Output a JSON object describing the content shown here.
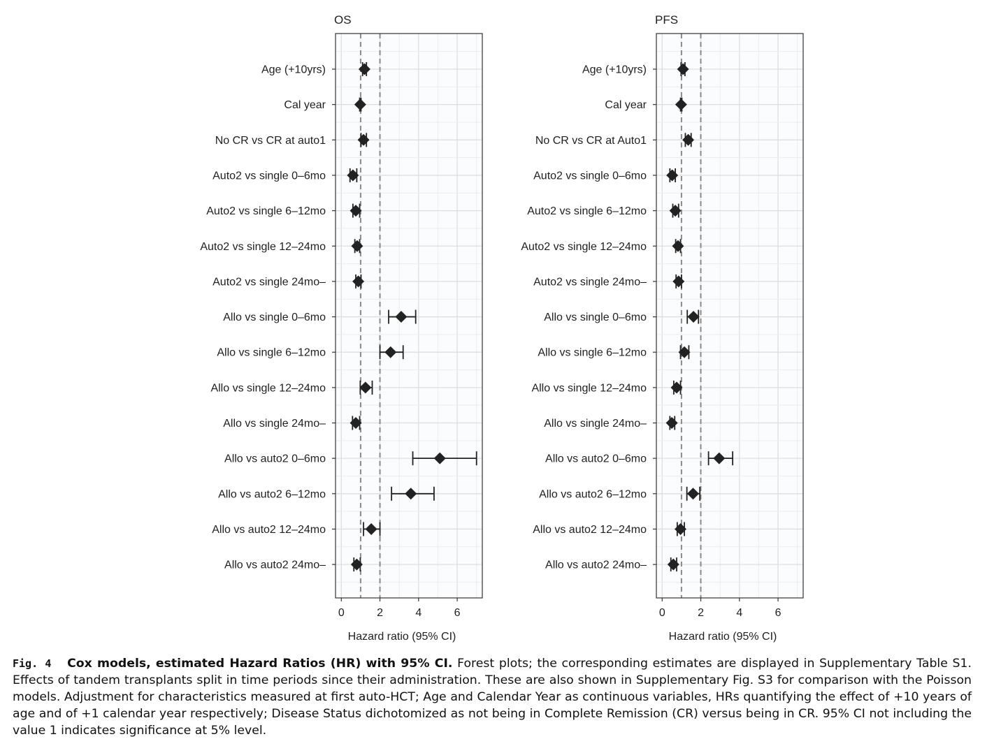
{
  "chart_data": [
    {
      "type": "forest",
      "title": "OS",
      "xlabel": "Hazard ratio (95% CI)",
      "xlim": [
        -0.3,
        7.3
      ],
      "xticks": [
        0,
        2,
        4,
        6
      ],
      "reference_lines": [
        1,
        2
      ],
      "grid": true,
      "rows": [
        {
          "label": "Age (+10yrs)",
          "hr": 1.2,
          "lower": 1.1,
          "upper": 1.3
        },
        {
          "label": "Cal year",
          "hr": 0.98,
          "lower": 0.95,
          "upper": 1.02
        },
        {
          "label": "No CR vs CR at auto1",
          "hr": 1.15,
          "lower": 1.02,
          "upper": 1.3
        },
        {
          "label": "Auto2 vs single 0–6mo",
          "hr": 0.6,
          "lower": 0.45,
          "upper": 0.8
        },
        {
          "label": "Auto2 vs single 6–12mo",
          "hr": 0.75,
          "lower": 0.6,
          "upper": 0.95
        },
        {
          "label": "Auto2 vs single 12–24mo",
          "hr": 0.82,
          "lower": 0.7,
          "upper": 0.95
        },
        {
          "label": "Auto2 vs single 24mo–",
          "hr": 0.88,
          "lower": 0.75,
          "upper": 1.02
        },
        {
          "label": "Allo vs single 0–6mo",
          "hr": 3.1,
          "lower": 2.45,
          "upper": 3.85
        },
        {
          "label": "Allo vs single 6–12mo",
          "hr": 2.55,
          "lower": 2.0,
          "upper": 3.2
        },
        {
          "label": "Allo vs single 12–24mo",
          "hr": 1.25,
          "lower": 0.98,
          "upper": 1.6
        },
        {
          "label": "Allo vs single 24mo–",
          "hr": 0.75,
          "lower": 0.58,
          "upper": 0.95
        },
        {
          "label": "Allo vs auto2 0–6mo",
          "hr": 5.1,
          "lower": 3.7,
          "upper": 7.0
        },
        {
          "label": "Allo vs auto2 6–12mo",
          "hr": 3.6,
          "lower": 2.6,
          "upper": 4.8
        },
        {
          "label": "Allo vs auto2 12–24mo",
          "hr": 1.55,
          "lower": 1.15,
          "upper": 2.0
        },
        {
          "label": "Allo vs auto2 24mo–",
          "hr": 0.8,
          "lower": 0.65,
          "upper": 0.98
        }
      ]
    },
    {
      "type": "forest",
      "title": "PFS",
      "xlabel": "Hazard ratio (95% CI)",
      "xlim": [
        -0.3,
        7.3
      ],
      "xticks": [
        0,
        2,
        4,
        6
      ],
      "reference_lines": [
        1,
        2
      ],
      "grid": true,
      "rows": [
        {
          "label": "Age (+10yrs)",
          "hr": 1.08,
          "lower": 0.98,
          "upper": 1.18
        },
        {
          "label": "Cal year",
          "hr": 0.98,
          "lower": 0.95,
          "upper": 1.02
        },
        {
          "label": "No CR vs CR at Auto1",
          "hr": 1.35,
          "lower": 1.2,
          "upper": 1.5
        },
        {
          "label": "Auto2 vs single 0–6mo",
          "hr": 0.52,
          "lower": 0.4,
          "upper": 0.68
        },
        {
          "label": "Auto2 vs single 6–12mo",
          "hr": 0.68,
          "lower": 0.55,
          "upper": 0.85
        },
        {
          "label": "Auto2 vs single 12–24mo",
          "hr": 0.82,
          "lower": 0.7,
          "upper": 0.95
        },
        {
          "label": "Auto2 vs single 24mo–",
          "hr": 0.85,
          "lower": 0.72,
          "upper": 1.0
        },
        {
          "label": "Allo vs single 0–6mo",
          "hr": 1.62,
          "lower": 1.3,
          "upper": 1.88
        },
        {
          "label": "Allo vs single 6–12mo",
          "hr": 1.15,
          "lower": 0.95,
          "upper": 1.38
        },
        {
          "label": "Allo vs single 12–24mo",
          "hr": 0.75,
          "lower": 0.6,
          "upper": 0.95
        },
        {
          "label": "Allo vs single 24mo–",
          "hr": 0.5,
          "lower": 0.4,
          "upper": 0.65
        },
        {
          "label": "Allo vs auto2 0–6mo",
          "hr": 2.95,
          "lower": 2.4,
          "upper": 3.65
        },
        {
          "label": "Allo vs auto2 6–12mo",
          "hr": 1.6,
          "lower": 1.28,
          "upper": 1.95
        },
        {
          "label": "Allo vs auto2 12–24mo",
          "hr": 0.95,
          "lower": 0.78,
          "upper": 1.15
        },
        {
          "label": "Allo vs auto2 24mo–",
          "hr": 0.58,
          "lower": 0.45,
          "upper": 0.75
        }
      ]
    }
  ],
  "caption": {
    "fig_no": "Fig. 4",
    "title": "Cox models, estimated Hazard Ratios (HR) with 95% CI.",
    "text": "Forest plots; the corresponding estimates are displayed in Supplementary Table S1. Effects of tandem transplants split in time periods since their administration. These are also shown in Supplementary Fig. S3 for comparison with the Poisson models. Adjustment for characteristics measured at first auto-HCT; Age and Calendar Year as continuous variables, HRs quantifying the effect of +10 years of age and of +1 calendar year respectively; Disease Status dichotomized as not being in Complete Remission (CR) versus being in CR. 95% CI not including the value 1 indicates significance at 5% level."
  },
  "colors": {
    "marker": "#222222",
    "panel_border": "#333333",
    "grid_major": "#dedede",
    "grid_minor": "#ececec",
    "reference_line": "#8a8a8a",
    "panel_background": "#fbfcfd"
  }
}
